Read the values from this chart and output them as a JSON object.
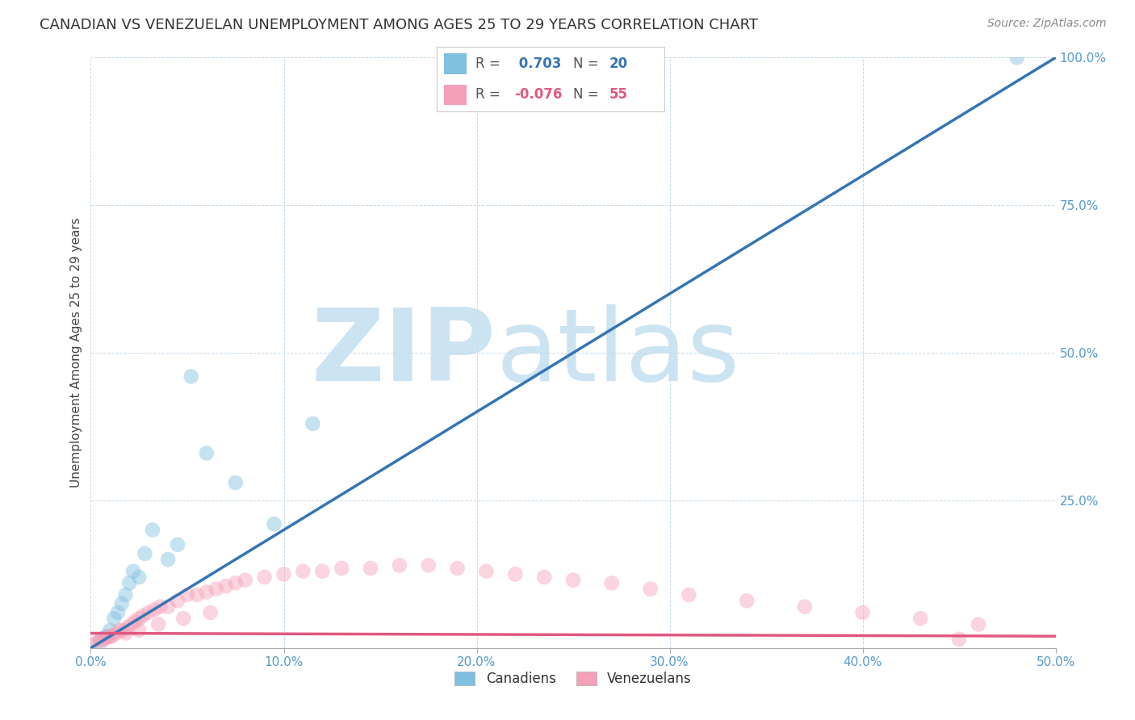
{
  "title": "CANADIAN VS VENEZUELAN UNEMPLOYMENT AMONG AGES 25 TO 29 YEARS CORRELATION CHART",
  "source": "Source: ZipAtlas.com",
  "ylabel": "Unemployment Among Ages 25 to 29 years",
  "xlim": [
    0.0,
    0.5
  ],
  "ylim": [
    0.0,
    1.0
  ],
  "xticks": [
    0.0,
    0.1,
    0.2,
    0.3,
    0.4,
    0.5
  ],
  "yticks": [
    0.0,
    0.25,
    0.5,
    0.75,
    1.0
  ],
  "xticklabels": [
    "0.0%",
    "10.0%",
    "20.0%",
    "30.0%",
    "40.0%",
    "50.0%"
  ],
  "yticklabels_right": [
    "",
    "25.0%",
    "50.0%",
    "75.0%",
    "100.0%"
  ],
  "canadians_x": [
    0.005,
    0.008,
    0.01,
    0.012,
    0.014,
    0.016,
    0.018,
    0.02,
    0.022,
    0.025,
    0.028,
    0.032,
    0.04,
    0.045,
    0.052,
    0.06,
    0.075,
    0.095,
    0.115,
    0.48
  ],
  "canadians_y": [
    0.01,
    0.02,
    0.03,
    0.05,
    0.06,
    0.075,
    0.09,
    0.11,
    0.13,
    0.12,
    0.16,
    0.2,
    0.15,
    0.175,
    0.46,
    0.33,
    0.28,
    0.21,
    0.38,
    1.0
  ],
  "venezuelans_x": [
    0.0,
    0.003,
    0.005,
    0.007,
    0.009,
    0.011,
    0.013,
    0.015,
    0.017,
    0.019,
    0.021,
    0.023,
    0.025,
    0.027,
    0.03,
    0.033,
    0.036,
    0.04,
    0.045,
    0.05,
    0.055,
    0.06,
    0.065,
    0.07,
    0.075,
    0.08,
    0.09,
    0.1,
    0.11,
    0.12,
    0.13,
    0.145,
    0.16,
    0.175,
    0.19,
    0.205,
    0.22,
    0.235,
    0.25,
    0.27,
    0.29,
    0.31,
    0.34,
    0.37,
    0.4,
    0.43,
    0.46,
    0.006,
    0.01,
    0.018,
    0.025,
    0.035,
    0.048,
    0.062,
    0.45
  ],
  "venezuelans_y": [
    0.005,
    0.01,
    0.015,
    0.015,
    0.018,
    0.02,
    0.025,
    0.03,
    0.03,
    0.035,
    0.04,
    0.045,
    0.05,
    0.055,
    0.06,
    0.065,
    0.07,
    0.07,
    0.08,
    0.09,
    0.09,
    0.095,
    0.1,
    0.105,
    0.11,
    0.115,
    0.12,
    0.125,
    0.13,
    0.13,
    0.135,
    0.135,
    0.14,
    0.14,
    0.135,
    0.13,
    0.125,
    0.12,
    0.115,
    0.11,
    0.1,
    0.09,
    0.08,
    0.07,
    0.06,
    0.05,
    0.04,
    0.015,
    0.02,
    0.025,
    0.03,
    0.04,
    0.05,
    0.06,
    0.015
  ],
  "canadian_color": "#7fbfdf",
  "venezuelan_color": "#f4a0b8",
  "canadian_line_color": "#3575b5",
  "venezuelan_line_color": "#e05880",
  "canadian_R": 0.703,
  "canadian_N": 20,
  "venezuelan_R": -0.076,
  "venezuelan_N": 55,
  "watermark_zip": "ZIP",
  "watermark_atlas": "atlas",
  "watermark_color": "#cce3f2",
  "background_color": "#ffffff",
  "legend_label_canadian": "Canadiens",
  "legend_label_venezuelan": "Venezuelans",
  "title_fontsize": 13,
  "axis_label_fontsize": 11,
  "tick_fontsize": 11,
  "marker_size": 180,
  "marker_alpha": 0.45,
  "grid_color": "#c8dcea",
  "tick_color": "#5599cc"
}
